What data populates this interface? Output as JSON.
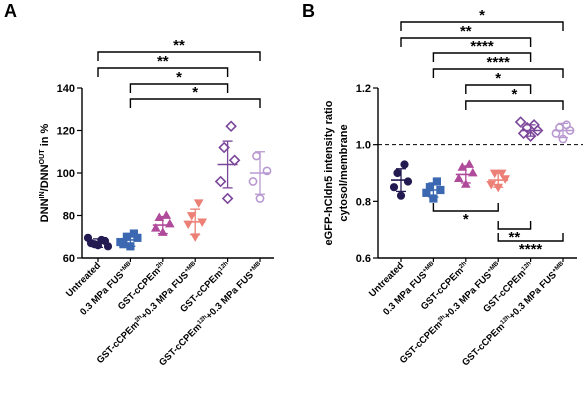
{
  "chart_data": [
    {
      "panel": "A",
      "type": "scatter",
      "ylabel": {
        "parts": [
          [
            "DNN",
            "base"
          ],
          [
            "IN",
            "sup"
          ],
          [
            "/DNN",
            "base"
          ],
          [
            "OUT",
            "sup"
          ],
          [
            " in %",
            "base"
          ]
        ]
      },
      "ylim": [
        60,
        140
      ],
      "yticks": [
        "60",
        "80",
        "100",
        "120",
        "140"
      ],
      "grid": false,
      "categories": [
        {
          "parts": [
            [
              "Untreated",
              "base"
            ]
          ]
        },
        {
          "parts": [
            [
              "0.3 MPa FUS",
              "base"
            ],
            [
              "+MB",
              "sup"
            ]
          ]
        },
        {
          "parts": [
            [
              "GST-cCPEm",
              "base"
            ],
            [
              "2h",
              "sup"
            ]
          ]
        },
        {
          "parts": [
            [
              "GST-cCPEm",
              "base"
            ],
            [
              "2h",
              "sup"
            ],
            [
              "+0.3 MPa FUS",
              "base"
            ],
            [
              "+MB",
              "sup"
            ]
          ]
        },
        {
          "parts": [
            [
              "GST-cCPEm",
              "base"
            ],
            [
              "12h",
              "sup"
            ]
          ]
        },
        {
          "parts": [
            [
              "GST-cCPEm",
              "base"
            ],
            [
              "12h",
              "sup"
            ],
            [
              "+0.3 MPa FUS",
              "base"
            ],
            [
              "+MB",
              "sup"
            ]
          ]
        }
      ],
      "series": [
        {
          "marker": "circle",
          "filled": true,
          "color": "#241a52",
          "mean": 67,
          "sd": 2,
          "points": [
            66,
            67,
            68,
            66.5,
            68.5,
            69.5,
            65.5
          ]
        },
        {
          "marker": "square",
          "filled": true,
          "color": "#3c68b2",
          "mean": 68.5,
          "sd": 3,
          "points": [
            65.5,
            66.5,
            69.5,
            70,
            71.5,
            67.5
          ]
        },
        {
          "marker": "triangle",
          "filled": true,
          "color": "#b04a9a",
          "mean": 75.5,
          "sd": 4,
          "points": [
            72,
            74,
            76,
            79,
            80
          ]
        },
        {
          "marker": "triangle-down",
          "filled": true,
          "color": "#ec7f76",
          "mean": 77,
          "sd": 6,
          "points": [
            70,
            76,
            77,
            80,
            86
          ]
        },
        {
          "marker": "diamond",
          "filled": false,
          "color": "#7b479a",
          "mean": 104,
          "sd": 11,
          "points": [
            88,
            96,
            106,
            112,
            122
          ]
        },
        {
          "marker": "circle",
          "filled": false,
          "color": "#b99ad0",
          "mean": 100,
          "sd": 10,
          "points": [
            88,
            96,
            101,
            108
          ]
        }
      ],
      "brackets": [
        {
          "from": 0,
          "to": 5,
          "label": "**"
        },
        {
          "from": 0,
          "to": 4,
          "label": "**"
        },
        {
          "from": 1,
          "to": 4,
          "label": "*"
        },
        {
          "from": 1,
          "to": 5,
          "label": "*"
        }
      ]
    },
    {
      "panel": "B",
      "type": "scatter",
      "ylabel": {
        "parts": [
          [
            "eGFP-hCldn5 intensity ratio",
            "base"
          ]
        ]
      },
      "ylabel2": {
        "parts": [
          [
            "cytosol/membrane",
            "base"
          ]
        ]
      },
      "ylim": [
        0.6,
        1.2
      ],
      "yticks": [
        "0.6",
        "0.8",
        "1.0",
        "1.2"
      ],
      "reference_line": 1.0,
      "grid": false,
      "categories": [
        {
          "parts": [
            [
              "Untreated",
              "base"
            ]
          ]
        },
        {
          "parts": [
            [
              "0.3 MPa FUS",
              "base"
            ],
            [
              "+MB",
              "sup"
            ]
          ]
        },
        {
          "parts": [
            [
              "GST-cCPEm",
              "base"
            ],
            [
              "2h",
              "sup"
            ]
          ]
        },
        {
          "parts": [
            [
              "GST-cCPEm",
              "base"
            ],
            [
              "2h",
              "sup"
            ],
            [
              "+0.3 MPa FUS",
              "base"
            ],
            [
              "+MB",
              "sup"
            ]
          ]
        },
        {
          "parts": [
            [
              "GST-cCPEm",
              "base"
            ],
            [
              "12h",
              "sup"
            ]
          ]
        },
        {
          "parts": [
            [
              "GST-cCPEm",
              "base"
            ],
            [
              "12h",
              "sup"
            ],
            [
              "+0.3 MPa FUS",
              "base"
            ],
            [
              "+MB",
              "sup"
            ]
          ]
        }
      ],
      "series": [
        {
          "marker": "circle",
          "filled": true,
          "color": "#241a52",
          "mean": 0.875,
          "sd": 0.04,
          "points": [
            0.82,
            0.85,
            0.87,
            0.9,
            0.93
          ]
        },
        {
          "marker": "square",
          "filled": true,
          "color": "#3c68b2",
          "mean": 0.84,
          "sd": 0.025,
          "points": [
            0.81,
            0.83,
            0.84,
            0.85,
            0.87
          ]
        },
        {
          "marker": "triangle",
          "filled": true,
          "color": "#b04a9a",
          "mean": 0.895,
          "sd": 0.03,
          "points": [
            0.86,
            0.88,
            0.9,
            0.92,
            0.93
          ]
        },
        {
          "marker": "triangle-down",
          "filled": true,
          "color": "#ec7f76",
          "mean": 0.875,
          "sd": 0.025,
          "points": [
            0.85,
            0.86,
            0.88,
            0.9,
            0.9
          ]
        },
        {
          "marker": "diamond",
          "filled": false,
          "color": "#7b479a",
          "mean": 1.05,
          "sd": 0.02,
          "points": [
            1.03,
            1.04,
            1.05,
            1.06,
            1.07,
            1.08
          ]
        },
        {
          "marker": "circle",
          "filled": false,
          "color": "#b99ad0",
          "mean": 1.05,
          "sd": 0.025,
          "points": [
            1.02,
            1.04,
            1.05,
            1.06,
            1.07
          ]
        }
      ],
      "brackets_top": [
        {
          "from": 0,
          "to": 5,
          "label": "*"
        },
        {
          "from": 0,
          "to": 4,
          "label": "**"
        },
        {
          "from": 1,
          "to": 4,
          "label": "****"
        },
        {
          "from": 1,
          "to": 5,
          "label": "****"
        },
        {
          "from": 2,
          "to": 4,
          "label": "*"
        },
        {
          "from": 2,
          "to": 5,
          "label": "*"
        }
      ],
      "brackets_bottom": [
        {
          "from": 1,
          "to": 3,
          "label": "*"
        },
        {
          "from": 3,
          "to": 4,
          "label": "**"
        },
        {
          "from": 3,
          "to": 5,
          "label": "****"
        }
      ]
    }
  ]
}
